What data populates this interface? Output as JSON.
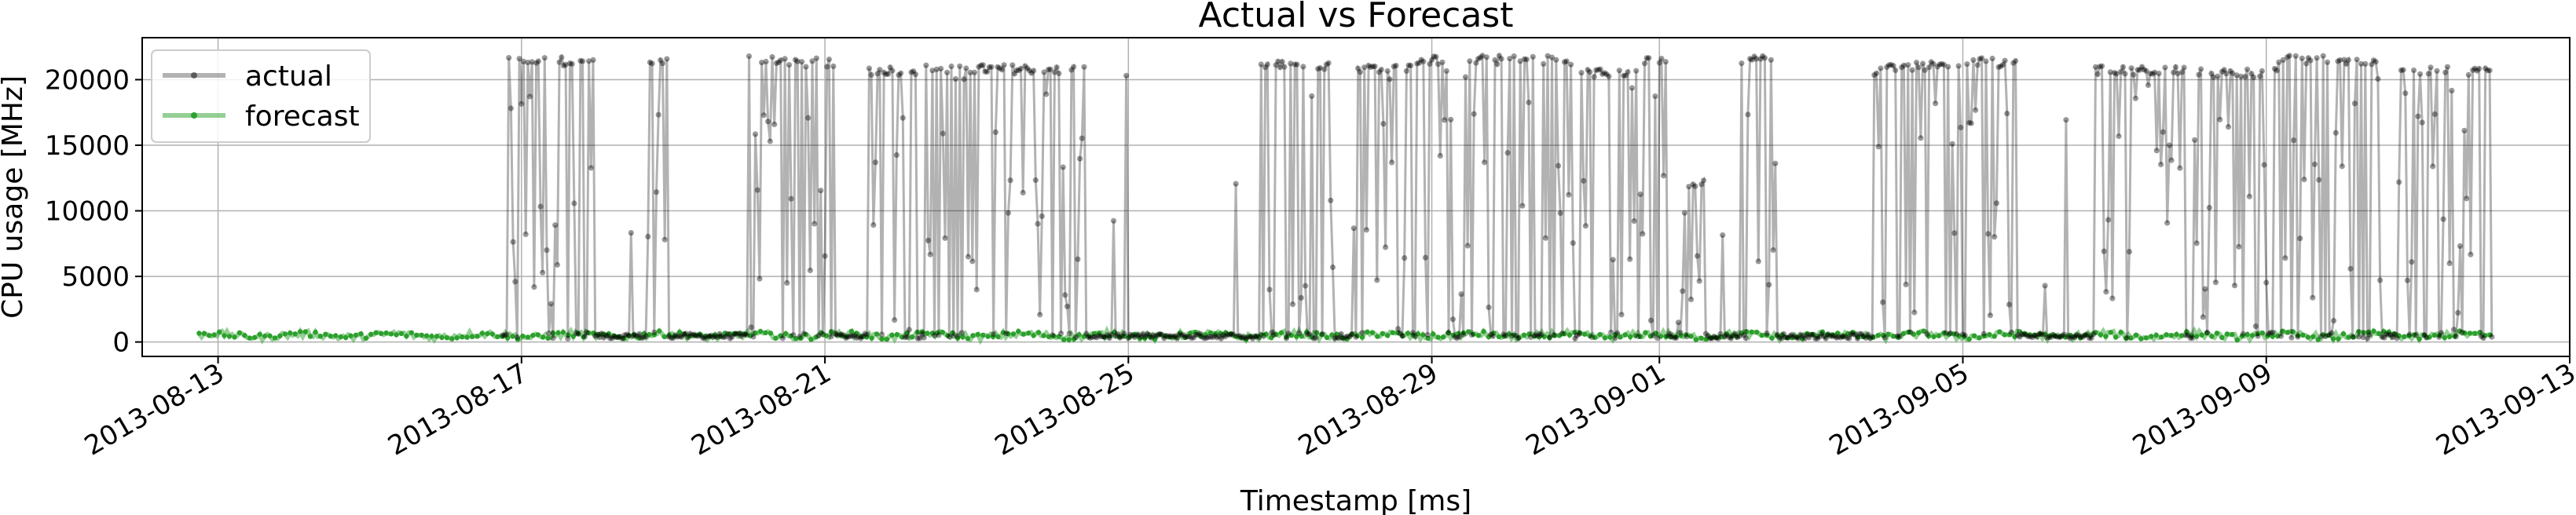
{
  "chart_data": {
    "type": "line",
    "title": "Actual vs Forecast",
    "xlabel": "Timestamp [ms]",
    "ylabel": "CPU usage [MHz]",
    "x_ticks": [
      "2013-08-13",
      "2013-08-17",
      "2013-08-21",
      "2013-08-25",
      "2013-08-29",
      "2013-09-01",
      "2013-09-05",
      "2013-09-09",
      "2013-09-13"
    ],
    "y_ticks": [
      "0",
      "5000",
      "10000",
      "15000",
      "20000"
    ],
    "xlim": [
      "2013-08-12",
      "2013-09-13"
    ],
    "ylim": [
      -1100,
      23200
    ],
    "grid": true,
    "legend_position": "top-left",
    "series": [
      {
        "name": "actual",
        "color": "#000000",
        "bursts": [
          {
            "start": "2013-08-16T19:00",
            "end": "2013-08-17T23:30",
            "level": 21400
          },
          {
            "start": "2013-08-18T16:00",
            "end": "2013-08-18T22:00",
            "level": 21500
          },
          {
            "start": "2013-08-19T23:00",
            "end": "2013-08-20T12:00",
            "level": 21500
          },
          {
            "start": "2013-08-20T12:00",
            "end": "2013-08-21T03:00",
            "level": 21300
          },
          {
            "start": "2013-08-21T14:00",
            "end": "2013-08-22T05:00",
            "level": 20700
          },
          {
            "start": "2013-08-22T08:00",
            "end": "2013-08-23T18:00",
            "level": 20800
          },
          {
            "start": "2013-08-23T18:00",
            "end": "2013-08-24T10:00",
            "level": 20700
          },
          {
            "start": "2013-08-26T17:00",
            "end": "2013-08-27T17:00",
            "level": 21100
          },
          {
            "start": "2013-08-27T23:00",
            "end": "2013-08-28T19:00",
            "level": 20900
          },
          {
            "start": "2013-08-28T19:00",
            "end": "2013-08-30T21:00",
            "level": 21500
          },
          {
            "start": "2013-08-30T23:00",
            "end": "2013-08-31T17:00",
            "level": 20500
          },
          {
            "start": "2013-08-31T18:00",
            "end": "2013-09-01T02:00",
            "level": 21500
          },
          {
            "start": "2013-09-01T06:00",
            "end": "2013-09-01T14:00",
            "level": 12000
          },
          {
            "start": "2013-09-02T02:00",
            "end": "2013-09-02T13:00",
            "level": 21500
          },
          {
            "start": "2013-09-03T20:00",
            "end": "2013-09-04T21:00",
            "level": 21000
          },
          {
            "start": "2013-09-04T21:00",
            "end": "2013-09-05T17:00",
            "level": 21300
          },
          {
            "start": "2013-09-06T18:00",
            "end": "2013-09-07T22:00",
            "level": 20700
          },
          {
            "start": "2013-09-08T01:00",
            "end": "2013-09-09T03:00",
            "level": 20500
          },
          {
            "start": "2013-09-09T03:00",
            "end": "2013-09-10T12:00",
            "level": 21500
          },
          {
            "start": "2013-09-10T18:00",
            "end": "2013-09-11T23:00",
            "level": 20700
          }
        ]
      },
      {
        "name": "forecast",
        "color": "#2ca02c",
        "baseline": 500
      }
    ]
  }
}
